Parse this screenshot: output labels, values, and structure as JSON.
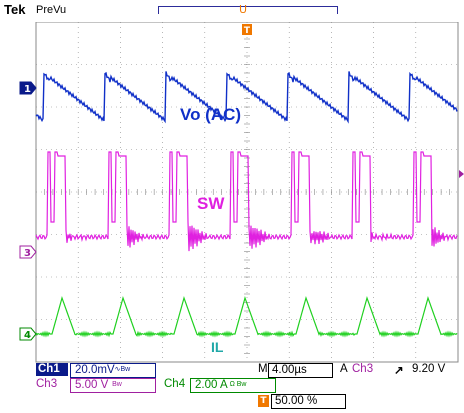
{
  "header": {
    "brand": "Tek",
    "mode": "PreVu",
    "trigger_position_glyph": "U"
  },
  "traces": {
    "ch1_label": "Vo (AC)",
    "ch3_label": "SW",
    "ch4_label": "IL",
    "ch1_marker": "1",
    "ch3_marker": "3",
    "ch4_marker": "4"
  },
  "colors": {
    "ch1": "#1030c8",
    "ch3": "#e020e0",
    "ch4": "#20d020",
    "trigger": "#f07800",
    "grid": "#888888"
  },
  "readouts": {
    "ch1_name": "Ch1",
    "ch1_scale": "20.0mV",
    "ch3_name": "Ch3",
    "ch3_scale": "5.00 V",
    "ch4_name": "Ch4",
    "ch4_scale": "2.00 A",
    "timebase_prefix": "M",
    "timebase": "4.00µs",
    "trigger_mode": "A",
    "trigger_source": "Ch3",
    "trigger_slope_glyph": "↗",
    "trigger_level": "9.20 V",
    "trigger_position": "50.00 %",
    "trigger_marker": "T"
  }
}
